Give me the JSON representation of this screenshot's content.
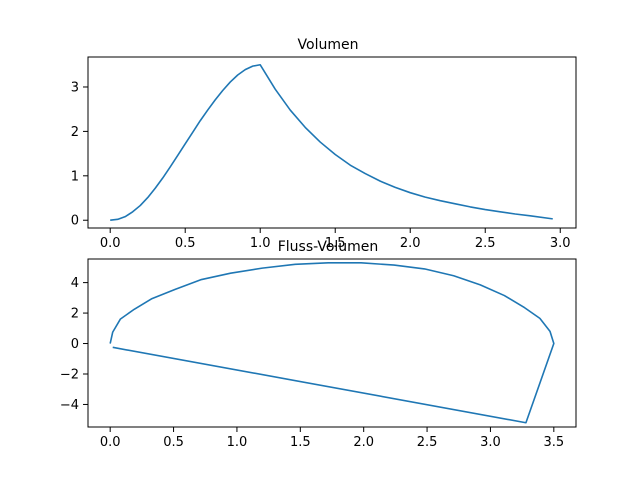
{
  "chart_data": [
    {
      "type": "line",
      "title": "Volumen",
      "xlabel": "",
      "ylabel": "",
      "xlim": [
        -0.148,
        3.105
      ],
      "ylim": [
        -0.175,
        3.675
      ],
      "xticks": [
        0.0,
        0.5,
        1.0,
        1.5,
        2.0,
        2.5,
        3.0
      ],
      "xtick_labels": [
        "0.0",
        "0.5",
        "1.0",
        "1.5",
        "2.0",
        "2.5",
        "3.0"
      ],
      "yticks": [
        0,
        1,
        2,
        3
      ],
      "ytick_labels": [
        "0",
        "1",
        "2",
        "3"
      ],
      "grid": false,
      "color": "#1f77b4",
      "series": [
        {
          "x": [
            0.0,
            0.05,
            0.1,
            0.15,
            0.2,
            0.25,
            0.3,
            0.35,
            0.4,
            0.45,
            0.5,
            0.55,
            0.6,
            0.65,
            0.7,
            0.75,
            0.8,
            0.85,
            0.9,
            0.95,
            1.0,
            1.1,
            1.2,
            1.3,
            1.4,
            1.5,
            1.6,
            1.7,
            1.8,
            1.9,
            2.0,
            2.1,
            2.2,
            2.3,
            2.4,
            2.5,
            2.6,
            2.7,
            2.8,
            2.95
          ],
          "y": [
            0.0,
            0.02,
            0.08,
            0.19,
            0.33,
            0.51,
            0.72,
            0.95,
            1.2,
            1.46,
            1.72,
            1.98,
            2.24,
            2.48,
            2.71,
            2.92,
            3.11,
            3.27,
            3.39,
            3.47,
            3.5,
            2.95,
            2.48,
            2.09,
            1.76,
            1.48,
            1.24,
            1.05,
            0.88,
            0.74,
            0.62,
            0.52,
            0.44,
            0.37,
            0.3,
            0.24,
            0.19,
            0.14,
            0.1,
            0.03
          ]
        }
      ]
    },
    {
      "type": "line",
      "title": "Fluss-Volumen",
      "xlabel": "",
      "ylabel": "",
      "xlim": [
        -0.175,
        3.675
      ],
      "ylim": [
        -5.48,
        5.55
      ],
      "xticks": [
        0.0,
        0.5,
        1.0,
        1.5,
        2.0,
        2.5,
        3.0,
        3.5
      ],
      "xtick_labels": [
        "0.0",
        "0.5",
        "1.0",
        "1.5",
        "2.0",
        "2.5",
        "3.0",
        "3.5"
      ],
      "yticks": [
        -4,
        -2,
        0,
        2,
        4
      ],
      "ytick_labels": [
        "−4",
        "−2",
        "0",
        "2",
        "4"
      ],
      "grid": false,
      "color": "#1f77b4",
      "series": [
        {
          "x": [
            0.0,
            0.02,
            0.08,
            0.19,
            0.33,
            0.51,
            0.72,
            0.95,
            1.2,
            1.46,
            1.72,
            1.98,
            2.24,
            2.48,
            2.71,
            2.92,
            3.11,
            3.27,
            3.39,
            3.47,
            3.5,
            3.28,
            0.02
          ],
          "y": [
            0.0,
            0.75,
            1.6,
            2.25,
            2.95,
            3.55,
            4.2,
            4.62,
            4.95,
            5.2,
            5.3,
            5.3,
            5.15,
            4.9,
            4.45,
            3.85,
            3.15,
            2.35,
            1.65,
            0.8,
            0.0,
            -5.2,
            -0.25
          ]
        }
      ]
    }
  ]
}
